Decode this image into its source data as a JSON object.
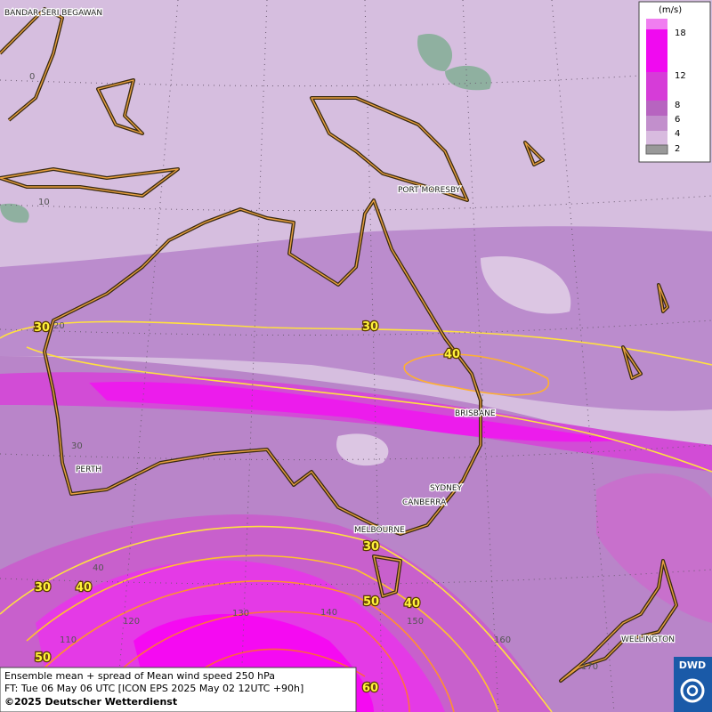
{
  "map": {
    "cities": [
      "BANDAR SERI BEGAWAN",
      "PORT MORESBY",
      "BRISBANE",
      "PERTH",
      "SYDNEY",
      "CANBERRA",
      "MELBOURNE",
      "WELLINGTON"
    ],
    "grid_labels": [
      "0",
      "10",
      "20",
      "30",
      "40",
      "110",
      "120",
      "130",
      "140",
      "150",
      "160",
      "170"
    ],
    "contour_labels": [
      "30",
      "30",
      "40",
      "30",
      "30",
      "40",
      "50",
      "40",
      "50",
      "60"
    ]
  },
  "legend": {
    "unit": "(m/s)",
    "levels": [
      "18",
      "12",
      "8",
      "6",
      "4",
      "2"
    ]
  },
  "footer": {
    "line1": "Ensemble mean + spread of Mean wind speed 250 hPa",
    "line2": "FT: Tue 06 May 06 UTC [ICON EPS 2025 May 02 12UTC +90h]",
    "line3": "©2025 Deutscher Wetterdienst"
  },
  "logo": "DWD"
}
